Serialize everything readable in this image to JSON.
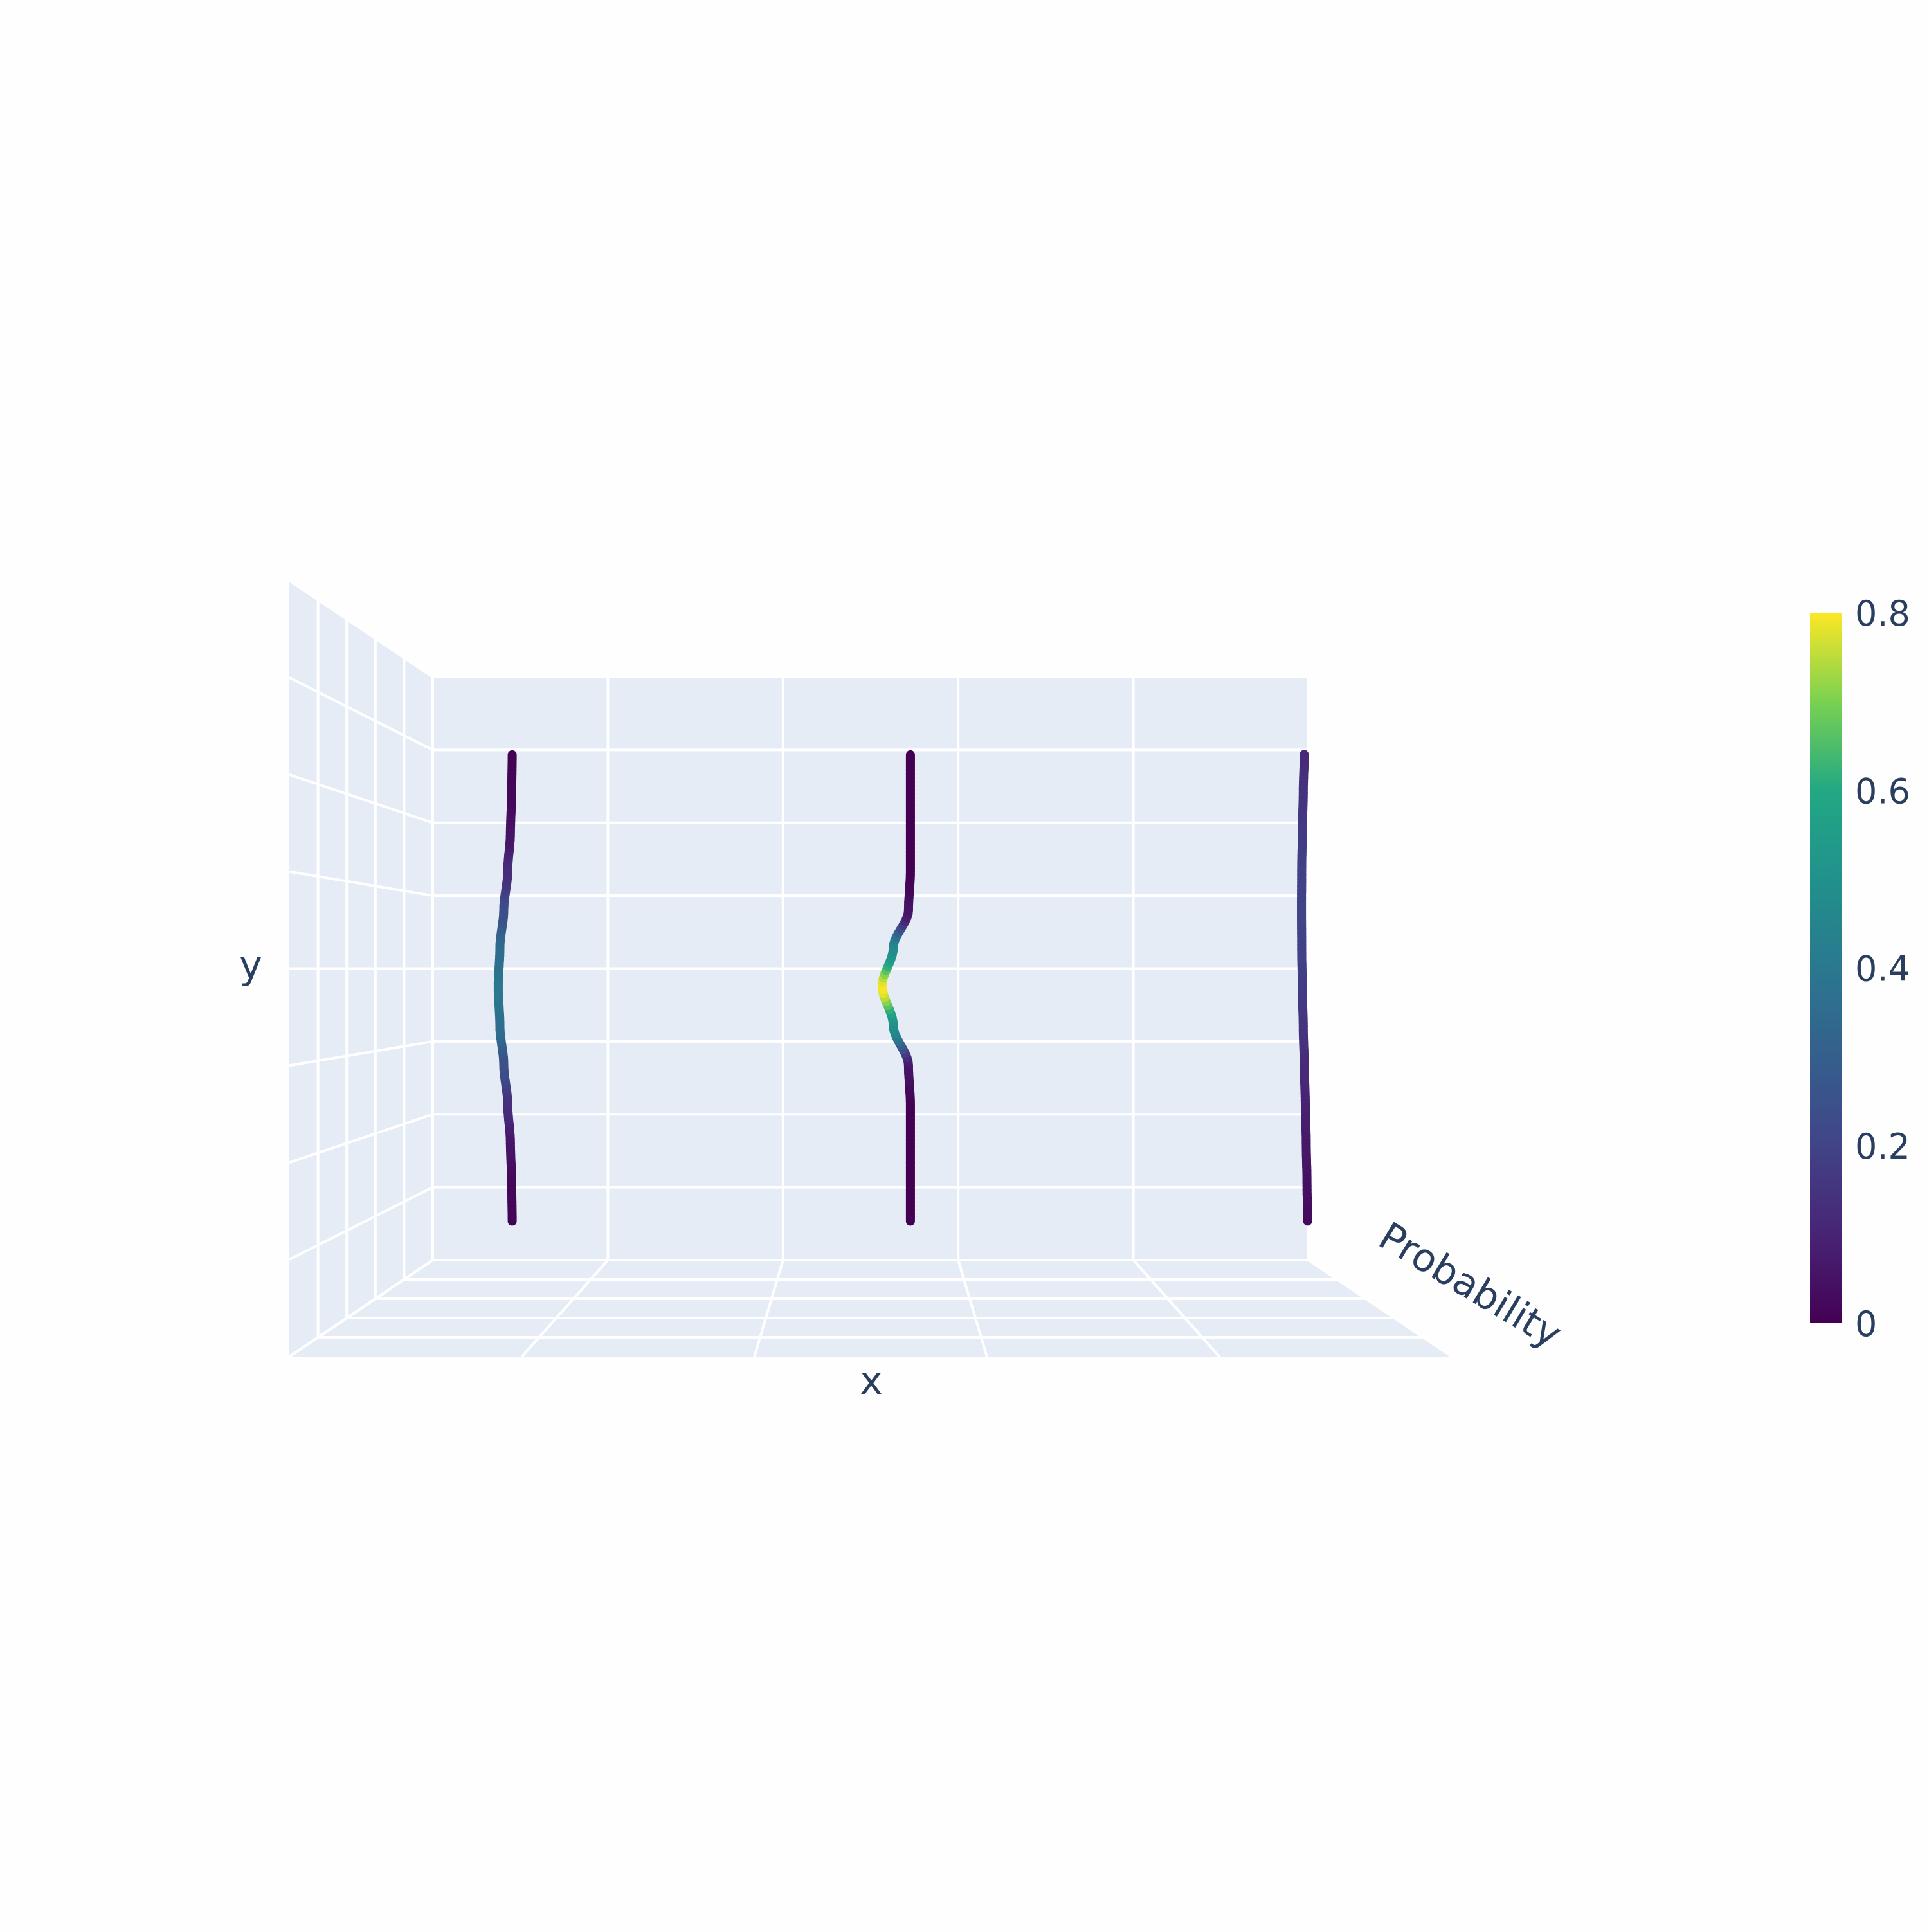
{
  "chart_data": {
    "type": "line",
    "mode": "3d",
    "axes": {
      "x": {
        "label": "x"
      },
      "y": {
        "label": "y"
      },
      "z": {
        "label": "Probability"
      }
    },
    "colorscale": {
      "name": "Viridis",
      "range": [
        0,
        0.8
      ],
      "tick_labels": [
        "0",
        "0.2",
        "0.4",
        "0.6",
        "0.8"
      ],
      "tick_values": [
        0,
        0.2,
        0.4,
        0.6,
        0.8
      ]
    },
    "series": [
      {
        "x": 0,
        "y": [
          -3,
          -2.5,
          -2,
          -1.5,
          -1,
          -0.5,
          0,
          0.5,
          1,
          1.5,
          2,
          2.5,
          3
        ],
        "probability": [
          0.004,
          0.018,
          0.054,
          0.13,
          0.242,
          0.352,
          0.399,
          0.352,
          0.242,
          0.13,
          0.054,
          0.018,
          0.004
        ]
      },
      {
        "x": 1,
        "y": [
          -3,
          -2.5,
          -2,
          -1.5,
          -1,
          -0.5,
          0,
          0.5,
          1,
          1.5,
          2,
          2.5,
          3
        ],
        "probability": [
          0,
          0,
          0,
          0.001,
          0.054,
          0.484,
          0.798,
          0.484,
          0.054,
          0.001,
          0,
          0,
          0
        ]
      },
      {
        "x": 2,
        "y": [
          -3,
          -2.5,
          -2,
          -1.5,
          -1,
          -0.5,
          0,
          0.5,
          1,
          1.5,
          2,
          2.5,
          3
        ],
        "probability": [
          0.026,
          0.043,
          0.065,
          0.091,
          0.121,
          0.15,
          0.176,
          0.194,
          0.2,
          0.194,
          0.176,
          0.15,
          0.121
        ]
      }
    ],
    "grid": true,
    "colorbar_placement": "right"
  }
}
